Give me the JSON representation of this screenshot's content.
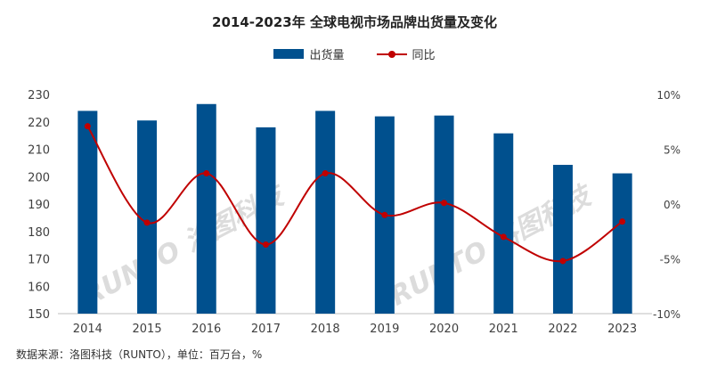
{
  "chart_data": {
    "type": "bar",
    "title": "2014-2023年 全球电视市场品牌出货量及变化",
    "categories": [
      "2014",
      "2015",
      "2016",
      "2017",
      "2018",
      "2019",
      "2020",
      "2021",
      "2022",
      "2023"
    ],
    "series": [
      {
        "name": "出货量",
        "type": "bar",
        "axis": "left",
        "color": "#00508e",
        "values": [
          224,
          220.5,
          226.5,
          218,
          224,
          222,
          222.3,
          215.8,
          204.3,
          201.2
        ]
      },
      {
        "name": "同比",
        "type": "line",
        "axis": "right",
        "color": "#c00000",
        "values": [
          7.1,
          -1.7,
          2.8,
          -3.7,
          2.8,
          -1.0,
          0.1,
          -3.0,
          -5.2,
          -1.6
        ]
      }
    ],
    "y_left": {
      "min": 150,
      "max": 230,
      "ticks": [
        "150",
        "160",
        "170",
        "180",
        "190",
        "200",
        "210",
        "220",
        "230"
      ]
    },
    "y_right": {
      "min": -10,
      "max": 10,
      "ticks": [
        "-10%",
        "-5%",
        "0%",
        "5%",
        "10%"
      ]
    },
    "grid": false,
    "legend_position": "top-center",
    "watermark": "RUNTO 洛图科技"
  },
  "source_note": "数据来源：洛图科技（RUNTO），单位：百万台，%"
}
